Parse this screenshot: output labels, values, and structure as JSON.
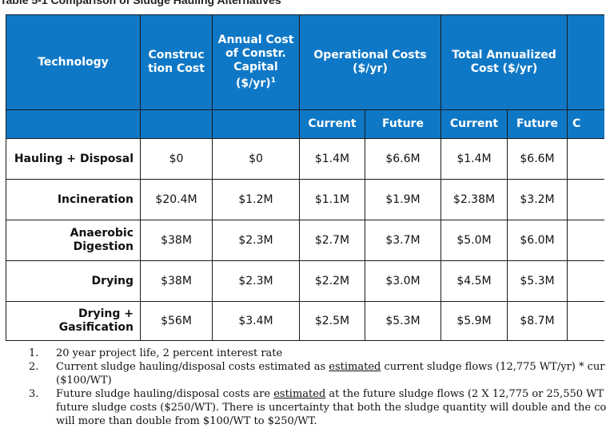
{
  "caption": "Table 5-1 Comparison of Sludge Hauling Alternatives",
  "headers": {
    "technology": "Technology",
    "construction_cost": "Construc tion Cost",
    "annual_cost": "Annual Cost of Constr. Capital ($/yr)",
    "annual_cost_sup": "1",
    "operational_costs": "Operational Costs ($/yr)",
    "total_annualized": "Total Annualized Cost ($/yr)",
    "current": "Current",
    "future": "Future",
    "partial": "C"
  },
  "rows": [
    {
      "technology": "Hauling + Disposal",
      "construction": "$0",
      "annual": "$0",
      "op_current": "$1.4M",
      "op_future": "$6.6M",
      "tot_current": "$1.4M",
      "tot_future": "$6.6M"
    },
    {
      "technology": "Incineration",
      "construction": "$20.4M",
      "annual": "$1.2M",
      "op_current": "$1.1M",
      "op_future": "$1.9M",
      "tot_current": "$2.38M",
      "tot_future": "$3.2M"
    },
    {
      "technology": "Anaerobic Digestion",
      "construction": "$38M",
      "annual": "$2.3M",
      "op_current": "$2.7M",
      "op_future": "$3.7M",
      "tot_current": "$5.0M",
      "tot_future": "$6.0M"
    },
    {
      "technology": "Drying",
      "construction": "$38M",
      "annual": "$2.3M",
      "op_current": "$2.2M",
      "op_future": "$3.0M",
      "tot_current": "$4.5M",
      "tot_future": "$5.3M"
    },
    {
      "technology_line1": "Drying +",
      "technology_line2": "Gasification",
      "construction": "$56M",
      "annual": "$3.4M",
      "op_current": "$2.5M",
      "op_future": "$5.3M",
      "tot_current": "$5.9M",
      "tot_future": "$8.7M"
    }
  ],
  "notes": {
    "n1_num": "1.",
    "n1": "20 year project life, 2 percent interest rate",
    "n2_num": "2.",
    "n2_a": "Current sludge hauling/disposal costs estimated as ",
    "n2_u": "estimated",
    "n2_b": " current sludge flows (12,775 WT/yr) * cur",
    "n2_line2": "($100/WT)",
    "n3_num": "3.",
    "n3_a": "Future  sludge hauling/disposal costs  are ",
    "n3_u": "estimated",
    "n3_b": " at the future  sludge flows (2 X 12,775 or 25,550 WT",
    "n3_line2": "future sludge costs ($250/WT). There is uncertainty that both the sludge quantity will double and the co",
    "n3_line3": "will more than double from $100/WT to $250/WT."
  }
}
